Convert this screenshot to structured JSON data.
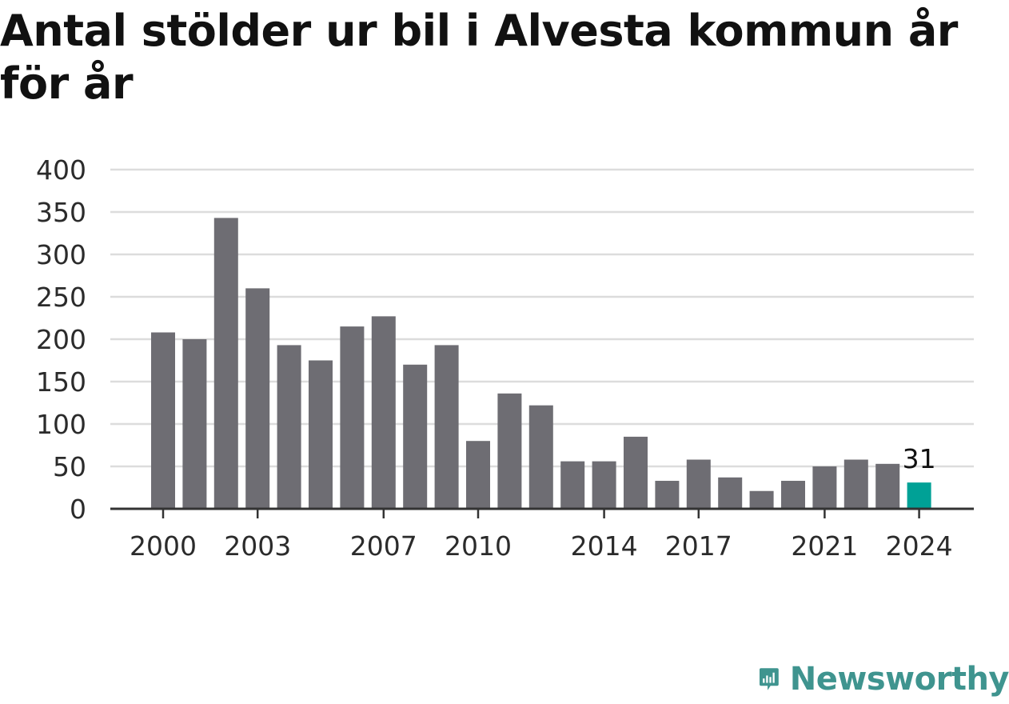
{
  "chart_data": {
    "type": "bar",
    "title": "Antal stölder ur bil i Alvesta kommun år för år",
    "xlabel": "",
    "ylabel": "",
    "ylim": [
      0,
      400
    ],
    "yticks": [
      0,
      50,
      100,
      150,
      200,
      250,
      300,
      350,
      400
    ],
    "xtick_labels": [
      "2000",
      "2003",
      "2007",
      "2010",
      "2014",
      "2017",
      "2021",
      "2024"
    ],
    "categories": [
      "2000",
      "2001",
      "2002",
      "2003",
      "2004",
      "2005",
      "2006",
      "2007",
      "2008",
      "2009",
      "2010",
      "2011",
      "2012",
      "2013",
      "2014",
      "2015",
      "2016",
      "2017",
      "2018",
      "2019",
      "2020",
      "2021",
      "2022",
      "2023",
      "2024"
    ],
    "values": [
      208,
      200,
      343,
      260,
      193,
      175,
      215,
      227,
      170,
      193,
      80,
      136,
      122,
      56,
      56,
      85,
      33,
      58,
      37,
      21,
      33,
      50,
      58,
      53,
      31
    ],
    "highlight_index": 24,
    "highlight_label": "31",
    "grid": true,
    "colors": {
      "bar": "#6e6d73",
      "highlight": "#00a196",
      "grid": "#dcdcdc",
      "axis": "#333333"
    }
  },
  "brand": {
    "name": "Newsworthy",
    "color": "#3f948f",
    "icon": "newsworthy-chart-bubble-icon"
  }
}
